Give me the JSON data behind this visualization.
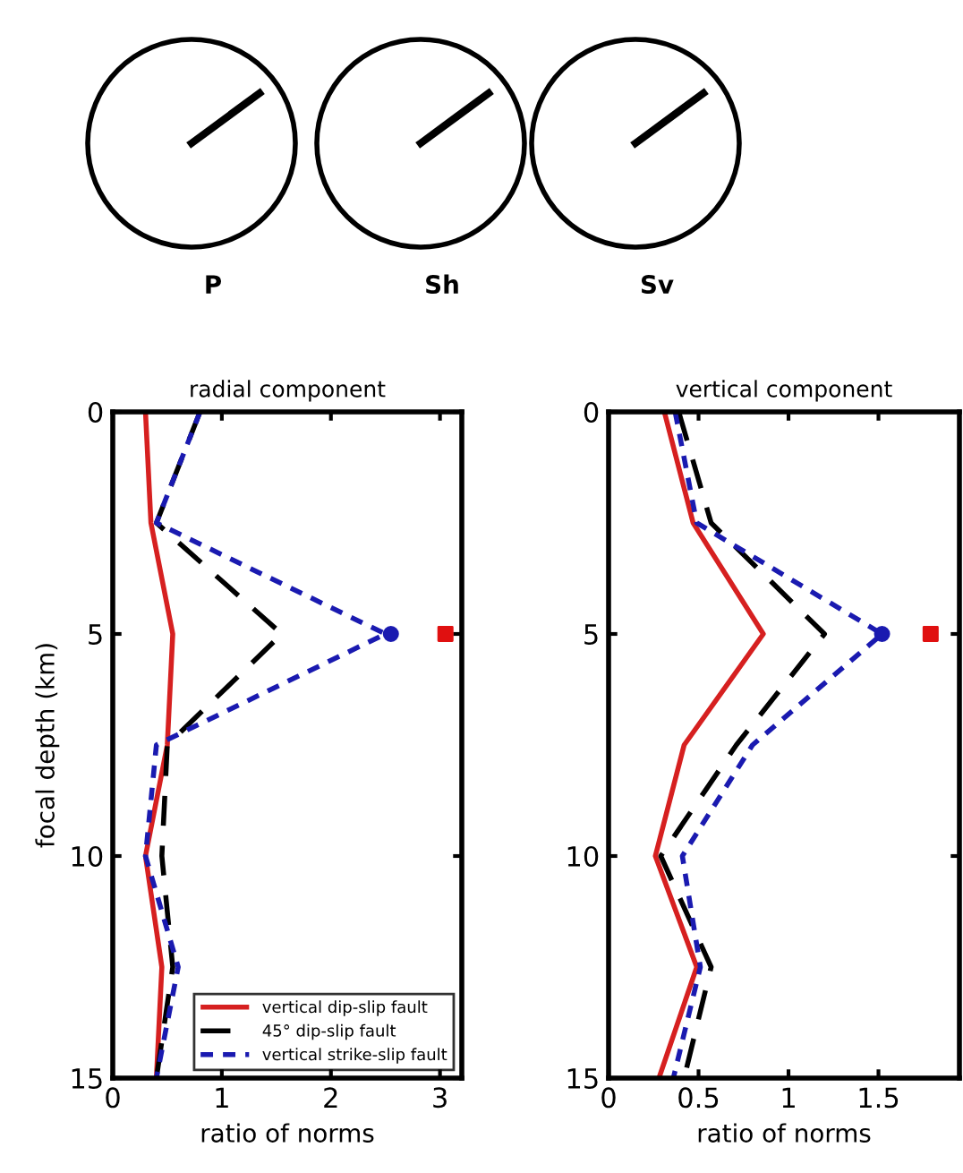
{
  "chart_data": [
    {
      "type": "other",
      "annotations": [
        "P",
        "Sh",
        "Sv"
      ]
    },
    {
      "type": "line",
      "title": "radial component",
      "xlabel": "ratio of norms",
      "ylabel": "focal depth (km)",
      "xlim": [
        0,
        3.2
      ],
      "xticks": [
        0,
        1,
        2,
        3
      ],
      "ylim": [
        15,
        0
      ],
      "yticks": [
        0,
        5,
        10,
        15
      ],
      "legend": "bottom right",
      "grid": false,
      "series": [
        {
          "name": "vertical dip-slip fault",
          "color": "#d62020",
          "line_style": "solid",
          "x": [
            0.3,
            0.35,
            0.55,
            0.5,
            0.3,
            0.45,
            0.4
          ],
          "values": [
            0,
            2.5,
            5,
            7.5,
            10,
            12.5,
            15
          ]
        },
        {
          "name": "45° dip-slip fault",
          "color": "#000000",
          "line_style": "dashed",
          "x": [
            0.8,
            0.4,
            1.55,
            0.5,
            0.45,
            0.55,
            0.4
          ],
          "values": [
            0,
            2.5,
            5,
            7.5,
            10,
            12.5,
            15
          ]
        },
        {
          "name": "vertical strike-slip fault",
          "color": "#1a1ab0",
          "line_style": "dotted",
          "x": [
            0.8,
            0.4,
            2.5,
            0.4,
            0.3,
            0.6,
            0.4
          ],
          "values": [
            0,
            2.5,
            5,
            7.5,
            10,
            12.5,
            15
          ]
        },
        {
          "type": "scatter",
          "marker": "circle",
          "color": "#1a1ab0",
          "x": [
            2.55
          ],
          "values": [
            5
          ]
        },
        {
          "type": "scatter",
          "marker": "square",
          "color": "#e01010",
          "x": [
            3.05
          ],
          "values": [
            5
          ]
        }
      ]
    },
    {
      "type": "line",
      "title": "vertical component",
      "xlabel": "ratio of norms",
      "xlim": [
        0,
        1.95
      ],
      "xticks": [
        0,
        0.5,
        1,
        1.5
      ],
      "ylim": [
        15,
        0
      ],
      "yticks": [
        0,
        5,
        10,
        15
      ],
      "grid": false,
      "series": [
        {
          "color": "#d62020",
          "line_style": "solid",
          "x": [
            0.31,
            0.47,
            0.86,
            0.42,
            0.26,
            0.49,
            0.28
          ],
          "values": [
            0,
            2.5,
            5,
            7.5,
            10,
            12.5,
            15
          ]
        },
        {
          "color": "#000000",
          "line_style": "dashed",
          "x": [
            0.39,
            0.57,
            1.2,
            0.71,
            0.29,
            0.57,
            0.42
          ],
          "values": [
            0,
            2.5,
            5,
            7.5,
            10,
            12.5,
            15
          ]
        },
        {
          "color": "#1a1ab0",
          "line_style": "dotted",
          "x": [
            0.37,
            0.49,
            1.52,
            0.8,
            0.41,
            0.51,
            0.36
          ],
          "values": [
            0,
            2.5,
            5,
            7.5,
            10,
            12.5,
            15
          ]
        },
        {
          "type": "scatter",
          "marker": "circle",
          "color": "#1a1ab0",
          "x": [
            1.52
          ],
          "values": [
            5
          ]
        },
        {
          "type": "scatter",
          "marker": "square",
          "color": "#e01010",
          "x": [
            1.79
          ],
          "values": [
            5
          ]
        }
      ]
    }
  ]
}
